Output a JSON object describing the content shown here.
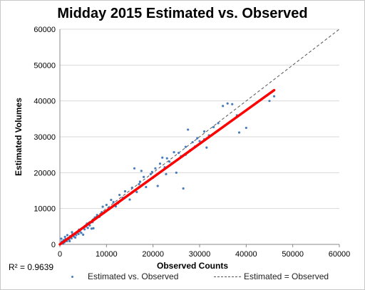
{
  "chart_data": {
    "type": "scatter",
    "title": "Midday 2015 Estimated vs. Observed",
    "xlabel": "Observed Counts",
    "ylabel": "Estimated Volumes",
    "xlim": [
      0,
      60000
    ],
    "ylim": [
      0,
      60000
    ],
    "xticks": [
      0,
      10000,
      20000,
      30000,
      40000,
      50000,
      60000
    ],
    "yticks": [
      0,
      10000,
      20000,
      30000,
      40000,
      50000,
      60000
    ],
    "grid": "horizontal",
    "r_squared_label": "R² = 0.9639",
    "legend": {
      "position": "bottom",
      "items": [
        "Estimated vs. Observed",
        "Estimated = Observed"
      ]
    },
    "colors": {
      "points": "#4a7ebb",
      "trend": "#ff0000",
      "reference": "#555555"
    },
    "trendline": {
      "x": [
        0,
        46000
      ],
      "y": [
        0,
        43000
      ]
    },
    "reference_line": {
      "x": [
        0,
        60000
      ],
      "y": [
        0,
        60000
      ]
    },
    "series": [
      {
        "name": "Estimated vs. Observed",
        "points": [
          [
            200,
            300
          ],
          [
            400,
            800
          ],
          [
            600,
            500
          ],
          [
            800,
            1200
          ],
          [
            1000,
            600
          ],
          [
            1200,
            1500
          ],
          [
            1500,
            900
          ],
          [
            1800,
            1800
          ],
          [
            2000,
            1300
          ],
          [
            2200,
            2300
          ],
          [
            2500,
            1700
          ],
          [
            2700,
            2800
          ],
          [
            3000,
            2200
          ],
          [
            3200,
            3000
          ],
          [
            3500,
            2600
          ],
          [
            3800,
            3300
          ],
          [
            4000,
            2900
          ],
          [
            4300,
            3600
          ],
          [
            4600,
            3200
          ],
          [
            5000,
            2700
          ],
          [
            5300,
            4200
          ],
          [
            5600,
            5000
          ],
          [
            6000,
            4600
          ],
          [
            6400,
            5300
          ],
          [
            6800,
            4400
          ],
          [
            7000,
            6200
          ],
          [
            7500,
            7500
          ],
          [
            8000,
            8200
          ],
          [
            8500,
            7700
          ],
          [
            9000,
            9000
          ],
          [
            9500,
            8800
          ],
          [
            10000,
            11000
          ],
          [
            10500,
            10200
          ],
          [
            11000,
            12400
          ],
          [
            11500,
            11800
          ],
          [
            12000,
            10600
          ],
          [
            12500,
            11500
          ],
          [
            13000,
            12200
          ],
          [
            13500,
            13000
          ],
          [
            14000,
            14800
          ],
          [
            14500,
            13600
          ],
          [
            15000,
            12500
          ],
          [
            15500,
            15800
          ],
          [
            16000,
            21200
          ],
          [
            16500,
            14600
          ],
          [
            17000,
            16800
          ],
          [
            17500,
            20500
          ],
          [
            18000,
            18800
          ],
          [
            18500,
            16000
          ],
          [
            19000,
            17700
          ],
          [
            19500,
            19600
          ],
          [
            20000,
            18600
          ],
          [
            20500,
            21200
          ],
          [
            21000,
            16300
          ],
          [
            21500,
            22500
          ],
          [
            22000,
            24200
          ],
          [
            22500,
            21500
          ],
          [
            23000,
            24000
          ],
          [
            23500,
            23100
          ],
          [
            24000,
            22600
          ],
          [
            24500,
            25700
          ],
          [
            25000,
            20000
          ],
          [
            25500,
            25500
          ],
          [
            26000,
            24600
          ],
          [
            26500,
            15600
          ],
          [
            27000,
            27200
          ],
          [
            27500,
            32000
          ],
          [
            28000,
            26300
          ],
          [
            28500,
            28500
          ],
          [
            29000,
            27300
          ],
          [
            29500,
            29600
          ],
          [
            30000,
            28800
          ],
          [
            31000,
            31500
          ],
          [
            31500,
            27000
          ],
          [
            32000,
            30400
          ],
          [
            33000,
            32700
          ],
          [
            34000,
            33800
          ],
          [
            35000,
            38600
          ],
          [
            36000,
            39300
          ],
          [
            37000,
            39100
          ],
          [
            38000,
            36000
          ],
          [
            38500,
            31200
          ],
          [
            40000,
            32500
          ],
          [
            45000,
            40000
          ],
          [
            46000,
            41300
          ],
          [
            300,
            1600
          ],
          [
            700,
            200
          ],
          [
            1100,
            2100
          ],
          [
            1600,
            2600
          ],
          [
            2100,
            900
          ],
          [
            2600,
            3400
          ],
          [
            3300,
            1900
          ],
          [
            4100,
            4100
          ],
          [
            5800,
            5800
          ],
          [
            7200,
            4500
          ],
          [
            9200,
            10500
          ],
          [
            12800,
            13800
          ],
          [
            17200,
            17500
          ],
          [
            19800,
            20200
          ],
          [
            22800,
            19600
          ],
          [
            27000,
            25000
          ],
          [
            31000,
            29300
          ]
        ]
      }
    ]
  }
}
